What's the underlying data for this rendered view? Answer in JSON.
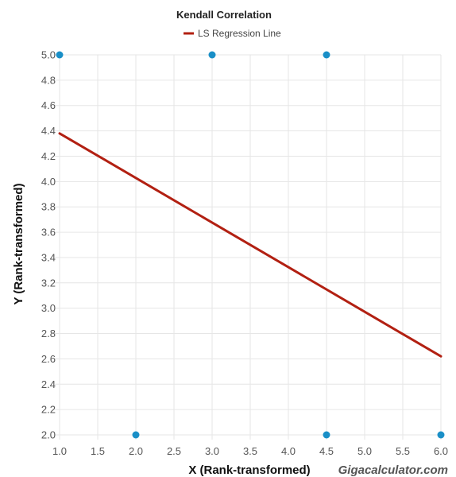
{
  "chart_data": {
    "type": "scatter",
    "title": "Kendall Correlation",
    "xlabel": "X (Rank-transformed)",
    "ylabel": "Y (Rank-transformed)",
    "xlim": [
      1.0,
      6.0
    ],
    "ylim": [
      2.0,
      5.0
    ],
    "x_ticks": [
      "1.0",
      "1.5",
      "2.0",
      "2.5",
      "3.0",
      "3.5",
      "4.0",
      "4.5",
      "5.0",
      "5.5",
      "6.0"
    ],
    "y_ticks": [
      "2.0",
      "2.2",
      "2.4",
      "2.6",
      "2.8",
      "3.0",
      "3.2",
      "3.4",
      "3.6",
      "3.8",
      "4.0",
      "4.2",
      "4.4",
      "4.6",
      "4.8",
      "5.0"
    ],
    "grid": true,
    "legend": {
      "position": "top-center",
      "entries": [
        {
          "name": "LS Regression Line",
          "color": "#b22012"
        }
      ]
    },
    "points": {
      "color": "#1a8fc7",
      "data": [
        {
          "x": 1.0,
          "y": 5.0
        },
        {
          "x": 3.0,
          "y": 5.0
        },
        {
          "x": 4.5,
          "y": 5.0
        },
        {
          "x": 2.0,
          "y": 2.0
        },
        {
          "x": 4.5,
          "y": 2.0
        },
        {
          "x": 6.0,
          "y": 2.0
        }
      ]
    },
    "series": [
      {
        "name": "LS Regression Line",
        "color": "#b22012",
        "x": [
          1.0,
          6.0
        ],
        "y": [
          4.38,
          2.62
        ]
      }
    ],
    "watermark": "Gigacalculator.com"
  }
}
